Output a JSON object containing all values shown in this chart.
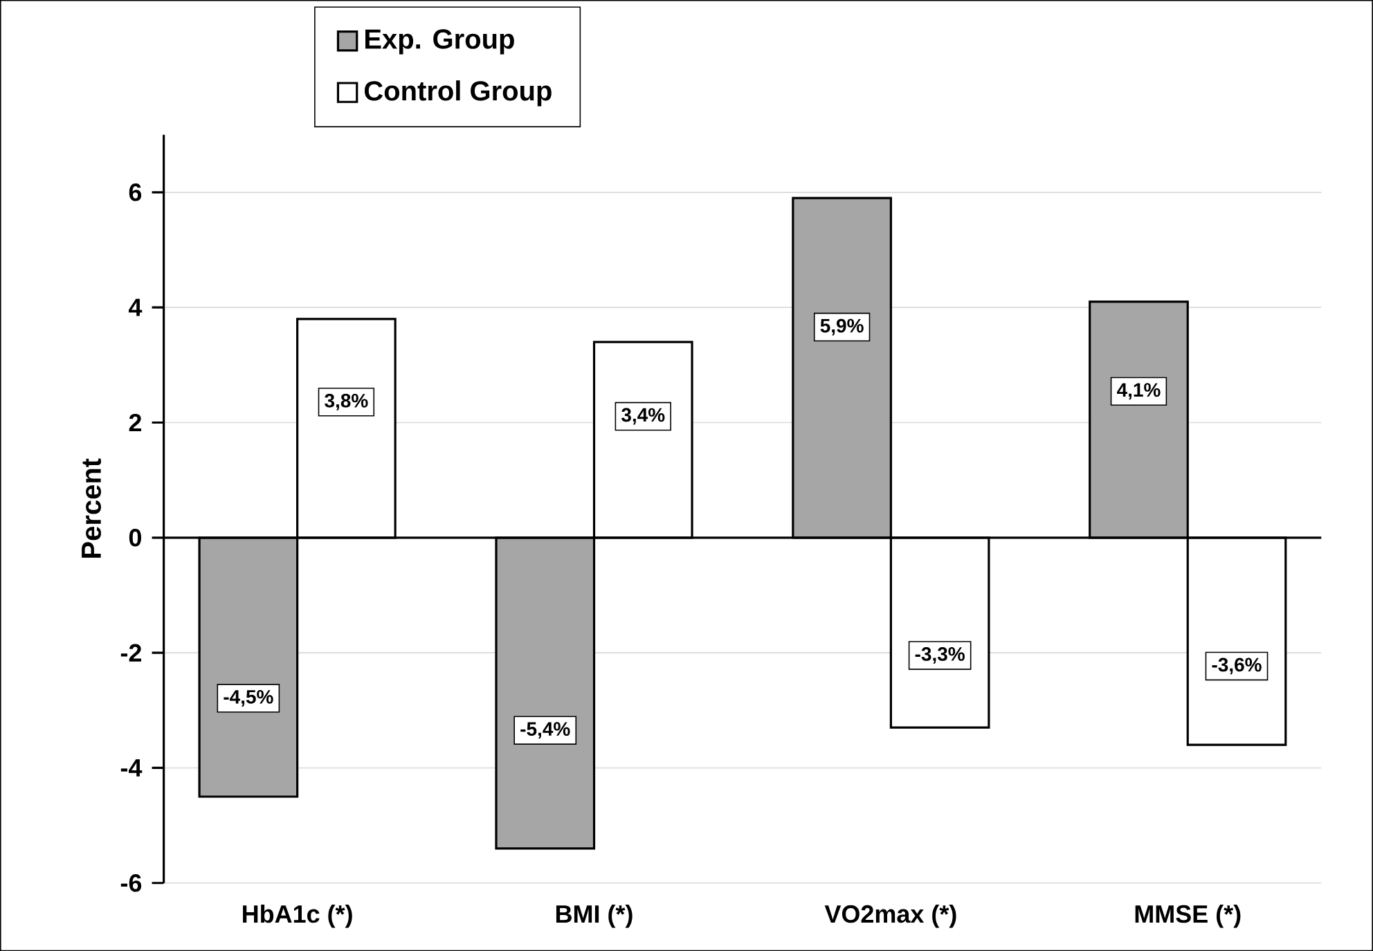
{
  "chart_data": {
    "type": "bar",
    "ylabel": "Percent",
    "categories": [
      "HbA1c (*)",
      "BMI (*)",
      "VO2max (*)",
      "MMSE (*)"
    ],
    "series": [
      {
        "name": "Exp. Group",
        "color": "#a6a6a6",
        "values": [
          -4.5,
          -5.4,
          5.9,
          4.1
        ],
        "value_labels": [
          "-4,5%",
          "-5,4%",
          "5,9%",
          "4,1%"
        ]
      },
      {
        "name": "Control Group",
        "color": "#ffffff",
        "values": [
          3.8,
          3.4,
          -3.3,
          -3.6
        ],
        "value_labels": [
          "3,8%",
          "3,4%",
          "-3,3%",
          "-3,6%"
        ]
      }
    ],
    "ylim": [
      -6,
      7
    ],
    "yticks": [
      -6,
      -4,
      -2,
      0,
      2,
      4,
      6
    ],
    "grid": "y",
    "legend": "top"
  }
}
